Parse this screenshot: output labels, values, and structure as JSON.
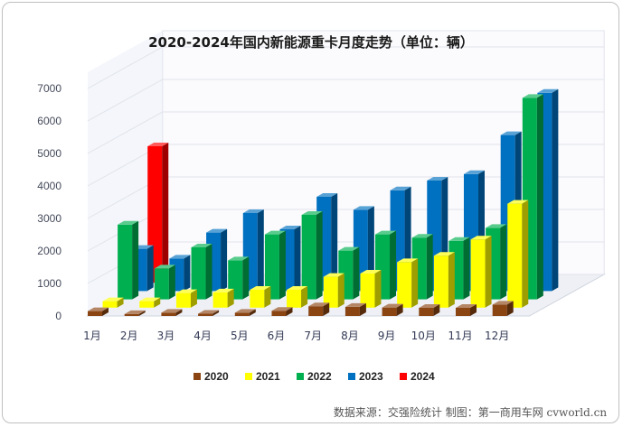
{
  "chart_data": {
    "type": "bar",
    "title": "2020-2024年国内新能源重卡月度走势（单位：辆）",
    "categories": [
      "1月",
      "2月",
      "3月",
      "4月",
      "5月",
      "6月",
      "7月",
      "8月",
      "9月",
      "10月",
      "11月",
      "12月"
    ],
    "y_ticks": [
      "0",
      "1000",
      "2000",
      "3000",
      "4000",
      "5000",
      "6000",
      "7000"
    ],
    "ylim": [
      0,
      7500
    ],
    "legend_position": "bottom",
    "series": [
      {
        "name": "2020",
        "color": "#8b4513",
        "values": [
          150,
          60,
          100,
          70,
          100,
          160,
          300,
          280,
          260,
          250,
          250,
          350
        ]
      },
      {
        "name": "2021",
        "color": "#ffff00",
        "values": [
          200,
          200,
          450,
          470,
          550,
          550,
          950,
          1050,
          1400,
          1600,
          2100,
          3200
        ]
      },
      {
        "name": "2022",
        "color": "#00b050",
        "values": [
          2300,
          950,
          1600,
          1200,
          2000,
          2600,
          1500,
          2000,
          1900,
          1800,
          2200,
          6200
        ]
      },
      {
        "name": "2023",
        "color": "#0070c0",
        "values": [
          1300,
          1000,
          1800,
          2400,
          1900,
          2900,
          2500,
          3100,
          3400,
          3600,
          4800,
          6100
        ]
      },
      {
        "name": "2024",
        "color": "#ff0000",
        "values": [
          4200,
          null,
          null,
          null,
          null,
          null,
          null,
          null,
          null,
          null,
          null,
          null
        ]
      }
    ],
    "source_note": "数据来源：交强险统计  制图：第一商用车网 cvworld.cn"
  }
}
